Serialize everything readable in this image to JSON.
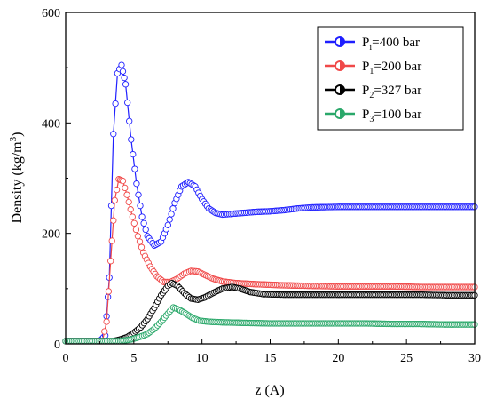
{
  "chart_data": {
    "type": "scatter",
    "xlabel": "z (A)",
    "ylabel_main": "Density (kg/m",
    "ylabel_sup": "3",
    "ylabel_end": ")",
    "xlim": [
      0,
      30
    ],
    "ylim": [
      0,
      600
    ],
    "xticks": [
      0,
      5,
      10,
      15,
      20,
      25,
      30
    ],
    "yticks": [
      0,
      200,
      400,
      600
    ],
    "grid": false,
    "legend_position": "top-right",
    "series": [
      {
        "legend_main": "P",
        "legend_sub": "i",
        "legend_rest": "=400 bar",
        "color": "#1f1fff",
        "points": [
          [
            0,
            5
          ],
          [
            2.5,
            5
          ],
          [
            2.9,
            15
          ],
          [
            3.2,
            120
          ],
          [
            3.5,
            380
          ],
          [
            3.8,
            490
          ],
          [
            4.1,
            505
          ],
          [
            4.4,
            470
          ],
          [
            4.8,
            370
          ],
          [
            5.2,
            290
          ],
          [
            5.6,
            230
          ],
          [
            6.0,
            195
          ],
          [
            6.5,
            178
          ],
          [
            7.0,
            185
          ],
          [
            7.5,
            215
          ],
          [
            8.0,
            255
          ],
          [
            8.5,
            285
          ],
          [
            9.0,
            293
          ],
          [
            9.5,
            285
          ],
          [
            10.0,
            262
          ],
          [
            10.5,
            245
          ],
          [
            11.0,
            237
          ],
          [
            11.5,
            234
          ],
          [
            12.0,
            235
          ],
          [
            13,
            237
          ],
          [
            14,
            239
          ],
          [
            15,
            240
          ],
          [
            16,
            242
          ],
          [
            17,
            245
          ],
          [
            18,
            247
          ],
          [
            20,
            248
          ],
          [
            22,
            248
          ],
          [
            24,
            248
          ],
          [
            26,
            248
          ],
          [
            28,
            248
          ],
          [
            30,
            248
          ]
        ]
      },
      {
        "legend_main": "P",
        "legend_sub": "1",
        "legend_rest": "=200 bar",
        "color": "#f04848",
        "points": [
          [
            0,
            5
          ],
          [
            2.7,
            5
          ],
          [
            3.0,
            40
          ],
          [
            3.3,
            150
          ],
          [
            3.6,
            260
          ],
          [
            3.9,
            298
          ],
          [
            4.2,
            295
          ],
          [
            4.5,
            270
          ],
          [
            4.9,
            230
          ],
          [
            5.3,
            195
          ],
          [
            5.7,
            165
          ],
          [
            6.2,
            140
          ],
          [
            6.7,
            122
          ],
          [
            7.2,
            112
          ],
          [
            7.7,
            112
          ],
          [
            8.2,
            118
          ],
          [
            8.7,
            127
          ],
          [
            9.2,
            132
          ],
          [
            9.7,
            131
          ],
          [
            10.2,
            125
          ],
          [
            10.8,
            118
          ],
          [
            11.5,
            113
          ],
          [
            12.5,
            110
          ],
          [
            14,
            108
          ],
          [
            16,
            106
          ],
          [
            18,
            105
          ],
          [
            20,
            104
          ],
          [
            22,
            104
          ],
          [
            24,
            104
          ],
          [
            26,
            103
          ],
          [
            28,
            103
          ],
          [
            30,
            103
          ]
        ]
      },
      {
        "legend_main": "P",
        "legend_sub": "2",
        "legend_rest": "=327 bar",
        "color": "#000000",
        "points": [
          [
            0,
            5
          ],
          [
            3.5,
            5
          ],
          [
            4.0,
            8
          ],
          [
            4.5,
            12
          ],
          [
            5.0,
            20
          ],
          [
            5.5,
            30
          ],
          [
            6.0,
            45
          ],
          [
            6.5,
            65
          ],
          [
            7.0,
            88
          ],
          [
            7.5,
            105
          ],
          [
            7.8,
            110
          ],
          [
            8.2,
            105
          ],
          [
            8.7,
            92
          ],
          [
            9.2,
            82
          ],
          [
            9.7,
            80
          ],
          [
            10.2,
            84
          ],
          [
            10.8,
            92
          ],
          [
            11.5,
            100
          ],
          [
            12.2,
            103
          ],
          [
            12.8,
            100
          ],
          [
            13.5,
            94
          ],
          [
            14.5,
            90
          ],
          [
            16,
            89
          ],
          [
            18,
            89
          ],
          [
            20,
            89
          ],
          [
            22,
            89
          ],
          [
            24,
            89
          ],
          [
            26,
            89
          ],
          [
            28,
            88
          ],
          [
            30,
            88
          ]
        ]
      },
      {
        "legend_main": "P",
        "legend_sub": "3",
        "legend_rest": "=100 bar",
        "color": "#2aa86a",
        "points": [
          [
            0,
            5
          ],
          [
            4.0,
            5
          ],
          [
            4.8,
            8
          ],
          [
            5.5,
            13
          ],
          [
            6.0,
            18
          ],
          [
            6.5,
            27
          ],
          [
            7.0,
            40
          ],
          [
            7.5,
            55
          ],
          [
            7.9,
            66
          ],
          [
            8.3,
            62
          ],
          [
            8.8,
            55
          ],
          [
            9.3,
            47
          ],
          [
            9.8,
            42
          ],
          [
            10.5,
            40
          ],
          [
            11.5,
            39
          ],
          [
            13,
            38
          ],
          [
            15,
            37
          ],
          [
            17,
            37
          ],
          [
            20,
            37
          ],
          [
            22,
            37
          ],
          [
            24,
            36
          ],
          [
            26,
            36
          ],
          [
            28,
            35
          ],
          [
            30,
            35
          ]
        ]
      }
    ]
  }
}
